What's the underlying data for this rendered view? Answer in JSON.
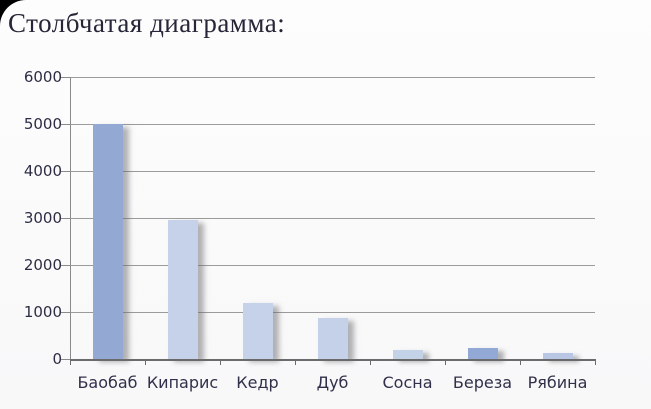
{
  "page": {
    "title": "Столбчатая диаграмма:"
  },
  "colors": {
    "background": "#fbfbfc",
    "corner_behind": "#000000",
    "title_text": "#262638",
    "axis_text": "#2d2d44",
    "gridline": "#9b9b9b",
    "axis_line": "#6b6b6b",
    "bar_shadow": "rgba(105,105,110,0.5)"
  },
  "chart_data": {
    "type": "bar",
    "title": "Столбчатая диаграмма:",
    "categories": [
      "Баобаб",
      "Кипарис",
      "Кедр",
      "Дуб",
      "Сосна",
      "Береза",
      "Рябина"
    ],
    "values": [
      5000,
      2950,
      1200,
      880,
      190,
      230,
      120
    ],
    "bar_colors": [
      "#93a8d2",
      "#c6d1ea",
      "#c6d1ea",
      "#c5d0e9",
      "#c4d2e8",
      "#93a9d5",
      "#b9c7e4"
    ],
    "xlabel": "",
    "ylabel": "",
    "ylim": [
      0,
      6000
    ],
    "ytick_step": 1000,
    "ytick_labels": [
      "0",
      "1000",
      "2000",
      "3000",
      "4000",
      "5000",
      "6000"
    ],
    "grid": true,
    "legend_position": "none"
  }
}
